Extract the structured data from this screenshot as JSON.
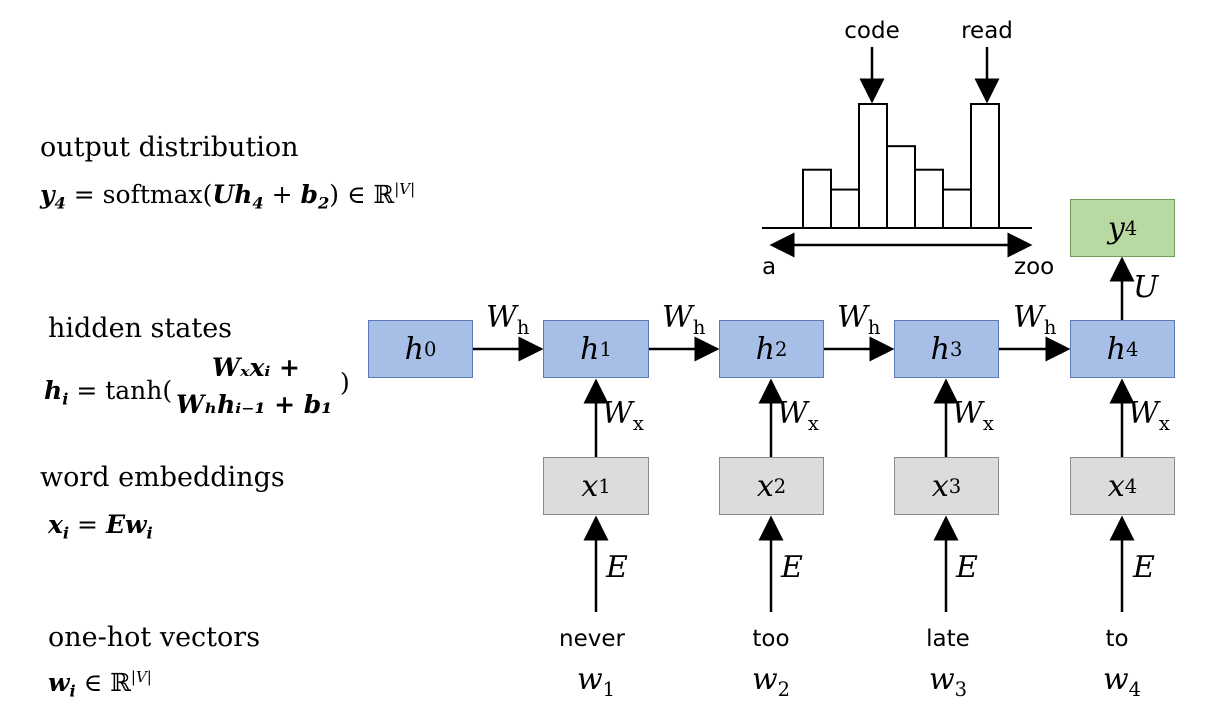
{
  "labels": {
    "output_title": "output distribution",
    "hidden_title": "hidden states",
    "embed_title": "word embeddings",
    "onehot_title": "one-hot vectors"
  },
  "formulas": {
    "output": {
      "y": "y",
      "y_sub": "4",
      "eq": " = softmax(",
      "U": "U",
      "h": "h",
      "h_sub": "4",
      "plus": " + ",
      "b": "b",
      "b_sub": "2",
      "close": ") ∈ ℝ",
      "sup": "|V|"
    },
    "hidden": {
      "h": "h",
      "h_sub": "i",
      "eq": " = tanh(",
      "line1": "Wₓxᵢ +",
      "line2": "Wₕhᵢ₋₁ + b₁",
      "close": ")"
    },
    "embed": {
      "x": "x",
      "x_sub": "i",
      "eq": " = ",
      "E": "E",
      "w": "w",
      "w_sub": "i"
    },
    "onehot": {
      "w": "w",
      "w_sub": "i",
      "in": " ∈ ℝ",
      "sup": "|V|"
    }
  },
  "hidden_nodes": [
    {
      "var": "h",
      "sub": "0"
    },
    {
      "var": "h",
      "sub": "1"
    },
    {
      "var": "h",
      "sub": "2"
    },
    {
      "var": "h",
      "sub": "3"
    },
    {
      "var": "h",
      "sub": "4"
    }
  ],
  "embed_nodes": [
    {
      "var": "x",
      "sub": "1"
    },
    {
      "var": "x",
      "sub": "2"
    },
    {
      "var": "x",
      "sub": "3"
    },
    {
      "var": "x",
      "sub": "4"
    }
  ],
  "output_node": {
    "var": "y",
    "sub": "4"
  },
  "edge_labels": {
    "recurrent": {
      "var": "W",
      "sub": "h"
    },
    "input": {
      "var": "W",
      "sub": "x"
    },
    "embed": "E",
    "output": "U"
  },
  "words": [
    "never",
    "too",
    "late",
    "to"
  ],
  "word_vars": [
    {
      "var": "w",
      "sub": "1"
    },
    {
      "var": "w",
      "sub": "2"
    },
    {
      "var": "w",
      "sub": "3"
    },
    {
      "var": "w",
      "sub": "4"
    }
  ],
  "histogram": {
    "peak_labels": [
      "code",
      "read"
    ],
    "axis_start": "a",
    "axis_end": "zoo",
    "bar_levels": [
      0.47,
      0.31,
      1.0,
      0.66,
      0.47,
      0.31,
      1.0
    ]
  },
  "colors": {
    "hidden_fill": "#a7bfe6",
    "embed_fill": "#dcdcdc",
    "output_fill": "#b9d9a3"
  }
}
